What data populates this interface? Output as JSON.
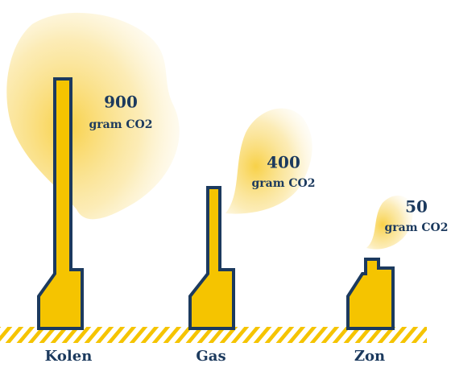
{
  "items": [
    {
      "label": "Kolen",
      "value": 900,
      "unit": "gram CO2"
    },
    {
      "label": "Gas",
      "value": 400,
      "unit": "gram CO2"
    },
    {
      "label": "Zon",
      "value": 50,
      "unit": "gram CO2"
    }
  ]
}
